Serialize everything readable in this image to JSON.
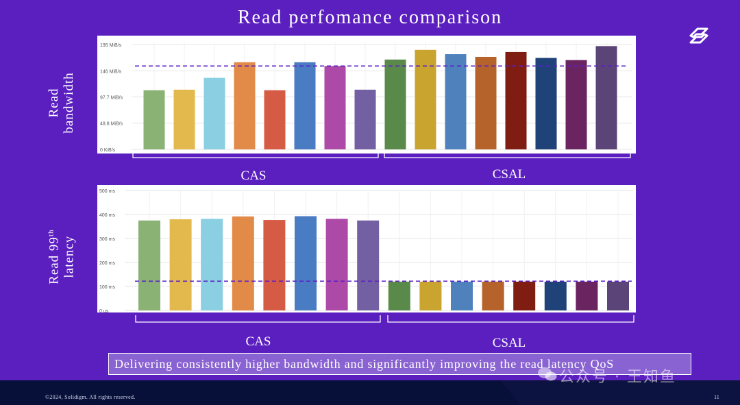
{
  "slide": {
    "title": "Read perfomance comparison",
    "callout": "Delivering consistently higher bandwidth and significantly improving the read latency QoS",
    "copyright": "©2024, Solidigm. All rights reserved.",
    "page_number": "11",
    "watermark_text": "公众号 · 王知鱼",
    "logo_icon": "solidigm-logo-icon",
    "watermark_icon": "wechat-icon"
  },
  "labels": {
    "bw_axis": [
      "Read",
      "bandwidth"
    ],
    "lat_axis_prefix": "Read 99",
    "lat_axis_sup": "th",
    "lat_axis_line2": "latency"
  },
  "colors": {
    "background": "#5b1fc0",
    "reference_line": "#5a1fc7",
    "cas": [
      "#8ab274",
      "#e3b94e",
      "#8acfe2",
      "#e28b48",
      "#d55b45",
      "#4a7cc4",
      "#ad4aa8",
      "#7360a3"
    ],
    "csal": [
      "#5a8a4a",
      "#c9a42f",
      "#4f81bd",
      "#b5632a",
      "#801d12",
      "#1f4278",
      "#6a2460",
      "#5a4478"
    ]
  },
  "chart_data": [
    {
      "type": "bar",
      "title": "",
      "ylabel": "Read bandwidth",
      "y_unit": "MiB/s",
      "yticks": [
        "0 KiB/s",
        "48.8 MiB/s",
        "97.7 MiB/s",
        "146 MiB/s",
        "195 MiB/s"
      ],
      "ytick_values": [
        0,
        48.8,
        97.7,
        146,
        195
      ],
      "ylim": [
        0,
        200
      ],
      "reference_line": 155,
      "groups": [
        {
          "name": "CAS",
          "values": [
            110,
            111,
            133,
            162,
            110,
            162,
            155,
            111
          ]
        },
        {
          "name": "CSAL",
          "values": [
            167,
            185,
            177,
            172,
            181,
            170,
            166,
            192
          ]
        }
      ]
    },
    {
      "type": "bar",
      "title": "",
      "ylabel": "Read 99th latency",
      "y_unit": "ms",
      "yticks": [
        "0 µs",
        "100 ms",
        "200 ms",
        "300 ms",
        "400 ms",
        "500 ms"
      ],
      "ytick_values": [
        0,
        100,
        200,
        300,
        400,
        500
      ],
      "ylim": [
        0,
        500
      ],
      "reference_line": 122,
      "groups": [
        {
          "name": "CAS",
          "values": [
            375,
            380,
            382,
            392,
            377,
            393,
            382,
            375
          ]
        },
        {
          "name": "CSAL",
          "values": [
            120,
            120,
            120,
            120,
            120,
            120,
            120,
            120
          ]
        }
      ]
    }
  ]
}
